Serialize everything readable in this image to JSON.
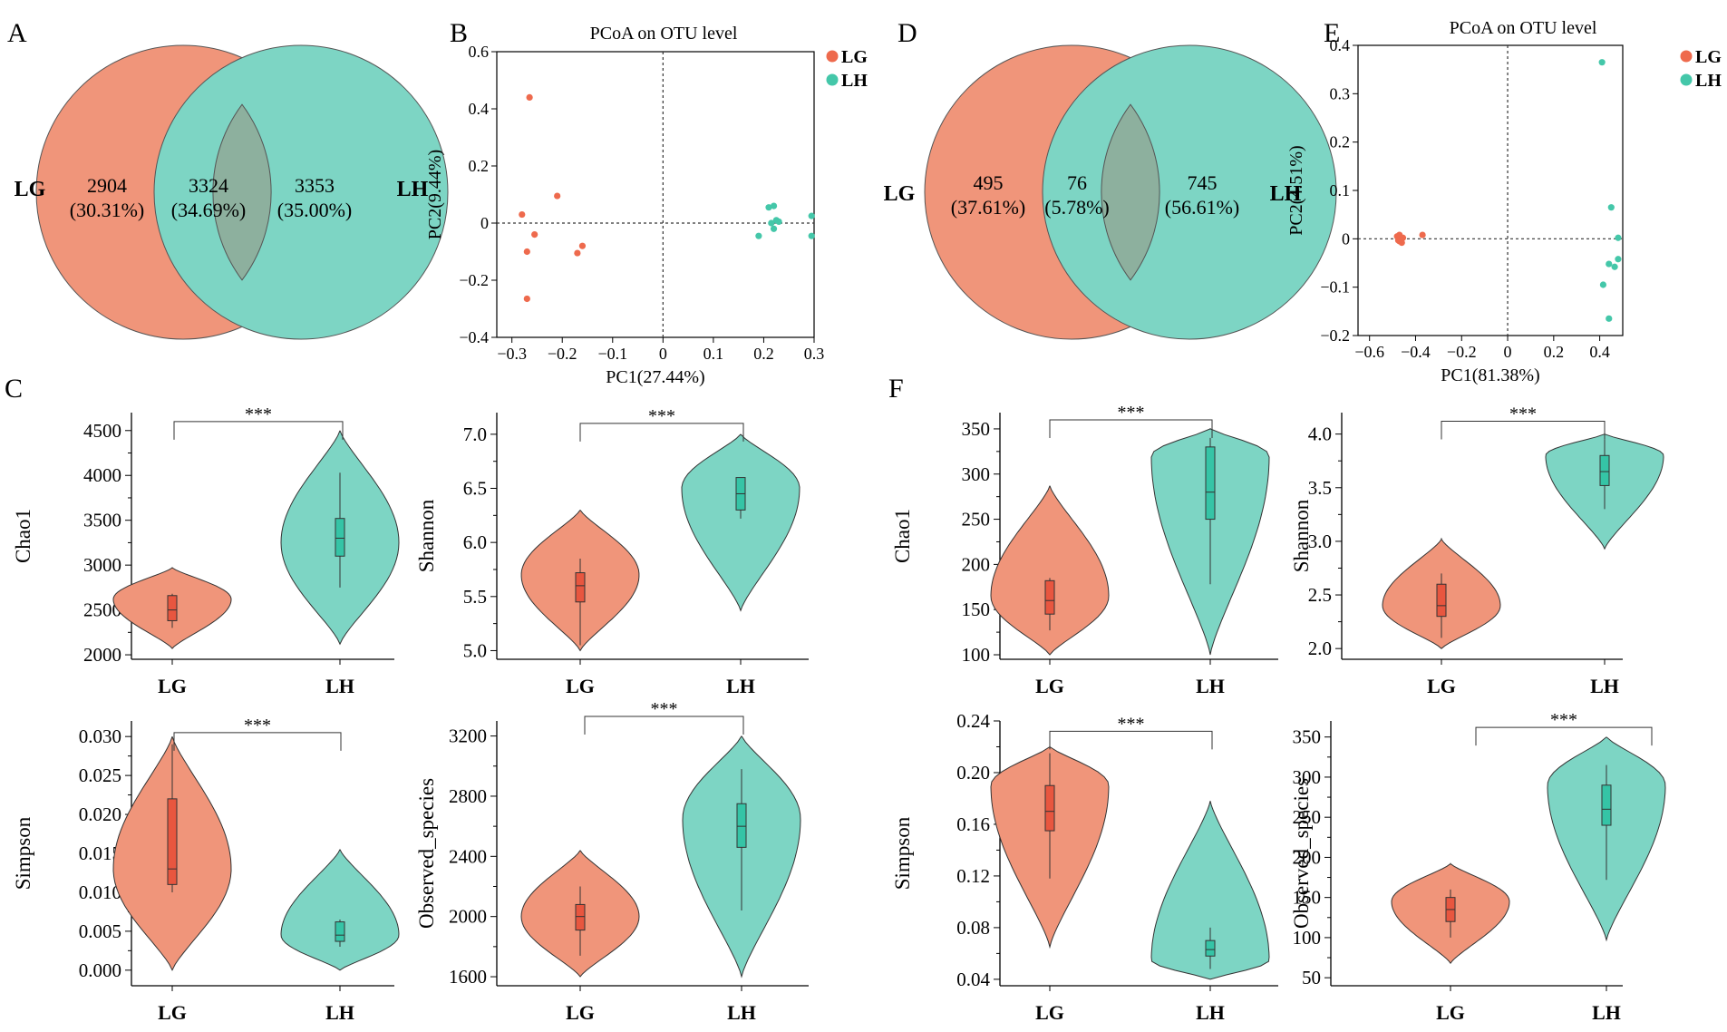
{
  "colors": {
    "lg": "#F0957A",
    "lh": "#7DD5C4",
    "overlap": "#8DB09E",
    "lg_box": "#E8563F",
    "lh_box": "#35C4A6",
    "lg_dot": "#EE6A4D",
    "lh_dot": "#44C7A9"
  },
  "venns": [
    {
      "panel": "A",
      "left_label": "LG",
      "right_label": "LH",
      "left_value": "2904",
      "left_pct": "(30.31%)",
      "mid_value": "3324",
      "mid_pct": "(34.69%)",
      "right_value": "3353",
      "right_pct": "(35.00%)"
    },
    {
      "panel": "D",
      "left_label": "LG",
      "right_label": "LH",
      "left_value": "495",
      "left_pct": "(37.61%)",
      "mid_value": "76",
      "mid_pct": "(5.78%)",
      "right_value": "745",
      "right_pct": "(56.61%)"
    }
  ],
  "section_labels": {
    "C": "C",
    "F": "F"
  },
  "chart_data": [
    {
      "panel": "B",
      "type": "scatter",
      "title": "PCoA on OTU level",
      "xlabel": "PC1(27.44%)",
      "ylabel": "PC2(9.44%)",
      "xlim": [
        -0.33,
        0.3
      ],
      "ylim": [
        -0.4,
        0.6
      ],
      "xticks": [
        -0.3,
        -0.2,
        -0.1,
        0,
        0.1,
        0.2,
        0.3
      ],
      "xtick_labels": [
        "−0.3",
        "−0.2",
        "−0.1",
        "0",
        "0.1",
        "0.2",
        "0.3"
      ],
      "yticks": [
        -0.4,
        -0.2,
        0,
        0.2,
        0.4,
        0.6
      ],
      "ytick_labels": [
        "−0.4",
        "−0.2",
        "0",
        "0.2",
        "0.4",
        "0.6"
      ],
      "legend": [
        "LG",
        "LH"
      ],
      "series": [
        {
          "name": "LG",
          "x": [
            -0.265,
            -0.28,
            -0.27,
            -0.255,
            -0.21,
            -0.17,
            -0.16,
            -0.27
          ],
          "y": [
            0.44,
            0.03,
            -0.1,
            -0.04,
            0.095,
            -0.105,
            -0.08,
            -0.265
          ]
        },
        {
          "name": "LH",
          "x": [
            0.21,
            0.22,
            0.225,
            0.215,
            0.22,
            0.19,
            0.295,
            0.295,
            0.23
          ],
          "y": [
            0.055,
            0.06,
            0.01,
            0.0,
            -0.02,
            -0.045,
            0.025,
            -0.045,
            0.005
          ]
        }
      ]
    },
    {
      "panel": "E",
      "type": "scatter",
      "title": "PCoA on OTU level",
      "xlabel": "PC1(81.38%)",
      "ylabel": "PC2(4.51%)",
      "xlim": [
        -0.65,
        0.5
      ],
      "ylim": [
        -0.2,
        0.4
      ],
      "xticks": [
        -0.6,
        -0.4,
        -0.2,
        0,
        0.2,
        0.4
      ],
      "xtick_labels": [
        "−0.6",
        "−0.4",
        "−0.2",
        "0",
        "0.2",
        "0.4"
      ],
      "yticks": [
        -0.2,
        -0.1,
        0,
        0.1,
        0.2,
        0.3,
        0.4
      ],
      "ytick_labels": [
        "−0.2",
        "−0.1",
        "0",
        "0.1",
        "0.2",
        "0.3",
        "0.4"
      ],
      "legend": [
        "LG",
        "LH"
      ],
      "series": [
        {
          "name": "LG",
          "x": [
            -0.48,
            -0.47,
            -0.465,
            -0.47,
            -0.455,
            -0.46,
            -0.37,
            -0.475
          ],
          "y": [
            0.005,
            -0.005,
            0.0,
            0.008,
            0.002,
            -0.008,
            0.008,
            -0.003
          ]
        },
        {
          "name": "LH",
          "x": [
            0.41,
            0.45,
            0.48,
            0.48,
            0.44,
            0.465,
            0.415,
            0.44
          ],
          "y": [
            0.365,
            0.065,
            0.002,
            -0.042,
            -0.052,
            -0.058,
            -0.095,
            -0.165
          ]
        }
      ]
    },
    {
      "panel": "C1",
      "type": "violin",
      "ylabel": "Chao1",
      "ylim": [
        1950,
        4700
      ],
      "yticks": [
        2000,
        2500,
        3000,
        3500,
        4000,
        4500
      ],
      "ytick_labels": [
        "2000",
        "2500",
        "3000",
        "3500",
        "4000",
        "4500"
      ],
      "categories": [
        "LG",
        "LH"
      ],
      "significance": "***",
      "bracket_y": 4600,
      "groups": [
        {
          "name": "LG",
          "min": 2070,
          "max": 2970,
          "q1": 2380,
          "median": 2500,
          "q3": 2660,
          "wlo": 2300,
          "whi": 2680,
          "peak": 2620
        },
        {
          "name": "LH",
          "min": 2120,
          "max": 4500,
          "q1": 3100,
          "median": 3300,
          "q3": 3520,
          "wlo": 2750,
          "whi": 4030,
          "peak": 3250
        }
      ]
    },
    {
      "panel": "C2",
      "type": "violin",
      "ylabel": "Shannon",
      "ylim": [
        4.92,
        7.2
      ],
      "yticks": [
        5.0,
        5.5,
        6.0,
        6.5,
        7.0
      ],
      "ytick_labels": [
        "5.0",
        "5.5",
        "6.0",
        "6.5",
        "7.0"
      ],
      "categories": [
        "LG",
        "LH"
      ],
      "significance": "***",
      "bracket_y": 7.1,
      "groups": [
        {
          "name": "LG",
          "min": 5.0,
          "max": 6.3,
          "q1": 5.45,
          "median": 5.6,
          "q3": 5.72,
          "wlo": 5.05,
          "whi": 5.85,
          "peak": 5.7
        },
        {
          "name": "LH",
          "min": 5.37,
          "max": 7.0,
          "q1": 6.3,
          "median": 6.45,
          "q3": 6.6,
          "wlo": 6.22,
          "whi": 6.6,
          "peak": 6.5
        }
      ]
    },
    {
      "panel": "C3",
      "type": "violin",
      "ylabel": "Simpson",
      "ylim": [
        -0.002,
        0.032
      ],
      "yticks": [
        0.0,
        0.005,
        0.01,
        0.015,
        0.02,
        0.025,
        0.03
      ],
      "ytick_labels": [
        "0.000",
        "0.005",
        "0.010",
        "0.015",
        "0.020",
        "0.025",
        "0.030"
      ],
      "categories": [
        "LG",
        "LH"
      ],
      "significance": "***",
      "bracket_y": 0.0305,
      "groups": [
        {
          "name": "LG",
          "min": 0.0,
          "max": 0.03,
          "q1": 0.011,
          "median": 0.013,
          "q3": 0.022,
          "wlo": 0.01,
          "whi": 0.029,
          "peak": 0.013
        },
        {
          "name": "LH",
          "min": 0.0,
          "max": 0.0155,
          "q1": 0.0037,
          "median": 0.0045,
          "q3": 0.0062,
          "wlo": 0.003,
          "whi": 0.0065,
          "peak": 0.0045
        }
      ]
    },
    {
      "panel": "C4",
      "type": "violin",
      "ylabel": "Observed_species",
      "ylim": [
        1540,
        3300
      ],
      "yticks": [
        1600,
        2000,
        2400,
        2800,
        3200
      ],
      "ytick_labels": [
        "1600",
        "2000",
        "2400",
        "2800",
        "3200"
      ],
      "categories": [
        "LG",
        "LH"
      ],
      "significance": "***",
      "bracket_y": 3330,
      "groups": [
        {
          "name": "LG",
          "min": 1600,
          "max": 2440,
          "q1": 1910,
          "median": 2000,
          "q3": 2080,
          "wlo": 1740,
          "whi": 2200,
          "peak": 2000
        },
        {
          "name": "LH",
          "min": 1600,
          "max": 3200,
          "q1": 2460,
          "median": 2600,
          "q3": 2750,
          "wlo": 2040,
          "whi": 2980,
          "peak": 2650
        }
      ]
    },
    {
      "panel": "F1",
      "type": "violin",
      "ylabel": "Chao1",
      "ylim": [
        95,
        368
      ],
      "yticks": [
        100,
        150,
        200,
        250,
        300,
        350
      ],
      "ytick_labels": [
        "100",
        "150",
        "200",
        "250",
        "300",
        "350"
      ],
      "categories": [
        "LG",
        "LH"
      ],
      "significance": "***",
      "bracket_y": 360,
      "groups": [
        {
          "name": "LG",
          "min": 100,
          "max": 287,
          "q1": 145,
          "median": 160,
          "q3": 182,
          "wlo": 127,
          "whi": 185,
          "peak": 165
        },
        {
          "name": "LH",
          "min": 100,
          "max": 350,
          "q1": 250,
          "median": 280,
          "q3": 330,
          "wlo": 178,
          "whi": 340,
          "peak": 320
        }
      ]
    },
    {
      "panel": "F2",
      "type": "violin",
      "ylabel": "Shannon",
      "ylim": [
        1.9,
        4.2
      ],
      "yticks": [
        2.0,
        2.5,
        3.0,
        3.5,
        4.0
      ],
      "ytick_labels": [
        "2.0",
        "2.5",
        "3.0",
        "3.5",
        "4.0"
      ],
      "categories": [
        "LG",
        "LH"
      ],
      "significance": "***",
      "bracket_y": 4.12,
      "groups": [
        {
          "name": "LG",
          "min": 2.0,
          "max": 3.02,
          "q1": 2.3,
          "median": 2.4,
          "q3": 2.6,
          "wlo": 2.1,
          "whi": 2.7,
          "peak": 2.4
        },
        {
          "name": "LH",
          "min": 2.93,
          "max": 4.0,
          "q1": 3.52,
          "median": 3.65,
          "q3": 3.8,
          "wlo": 3.3,
          "whi": 3.95,
          "peak": 3.8
        }
      ]
    },
    {
      "panel": "F3",
      "type": "violin",
      "ylabel": "Simpson",
      "ylim": [
        0.035,
        0.24
      ],
      "yticks": [
        0.04,
        0.08,
        0.12,
        0.16,
        0.2,
        0.24
      ],
      "ytick_labels": [
        "0.04",
        "0.08",
        "0.12",
        "0.16",
        "0.20",
        "0.24"
      ],
      "categories": [
        "LG",
        "LH"
      ],
      "significance": "***",
      "bracket_y": 0.232,
      "groups": [
        {
          "name": "LG",
          "min": 0.065,
          "max": 0.22,
          "q1": 0.155,
          "median": 0.17,
          "q3": 0.19,
          "wlo": 0.118,
          "whi": 0.215,
          "peak": 0.19
        },
        {
          "name": "LH",
          "min": 0.04,
          "max": 0.178,
          "q1": 0.058,
          "median": 0.063,
          "q3": 0.07,
          "wlo": 0.048,
          "whi": 0.08,
          "peak": 0.055
        }
      ]
    },
    {
      "panel": "F4",
      "type": "violin",
      "ylabel": "Observed_species",
      "ylim": [
        40,
        370
      ],
      "yticks": [
        50,
        100,
        150,
        200,
        250,
        300,
        350
      ],
      "ytick_labels": [
        "50",
        "100",
        "150",
        "200",
        "250",
        "300",
        "350"
      ],
      "categories": [
        "LG",
        "LH"
      ],
      "significance": "***",
      "bracket_y": 362,
      "groups": [
        {
          "name": "LG",
          "min": 68,
          "max": 192,
          "q1": 120,
          "median": 135,
          "q3": 150,
          "wlo": 100,
          "whi": 160,
          "peak": 145
        },
        {
          "name": "LH",
          "min": 97,
          "max": 350,
          "q1": 240,
          "median": 260,
          "q3": 290,
          "wlo": 172,
          "whi": 315,
          "peak": 290
        }
      ]
    }
  ]
}
